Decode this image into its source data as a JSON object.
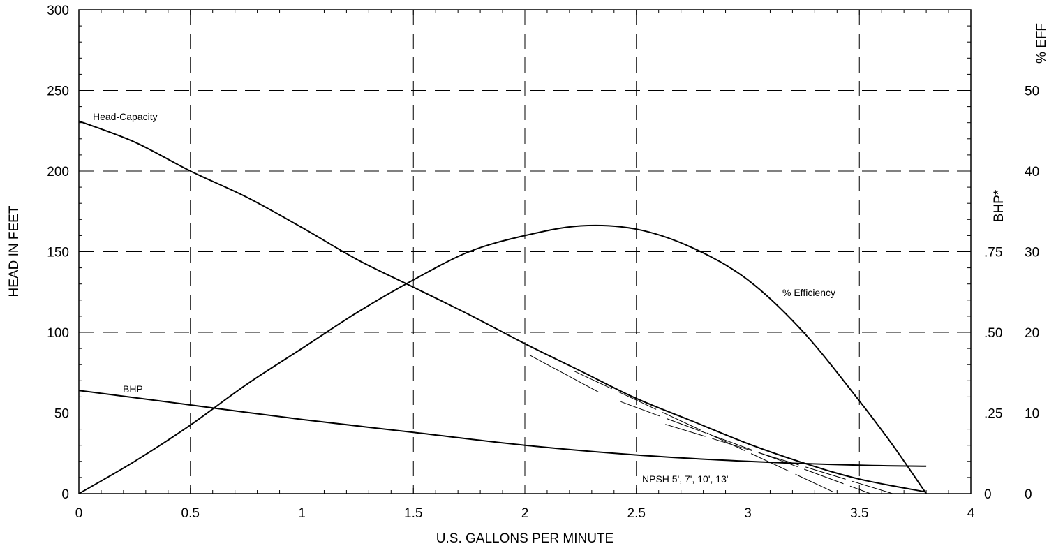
{
  "chart_data": {
    "type": "line",
    "title_left_partial": "",
    "title_right_partial": "",
    "xlabel": "U.S. GALLONS PER MINUTE",
    "ylabel": "HEAD IN FEET",
    "y2label_bhp": "BHP*",
    "y3label_eff": "% EFF",
    "xlim": [
      0,
      4
    ],
    "ylim": [
      0,
      300
    ],
    "grid": true,
    "x_ticks": [
      {
        "v": 0,
        "label": "0"
      },
      {
        "v": 0.5,
        "label": "0.5"
      },
      {
        "v": 1,
        "label": "1"
      },
      {
        "v": 1.5,
        "label": "1.5"
      },
      {
        "v": 2,
        "label": "2"
      },
      {
        "v": 2.5,
        "label": "2.5"
      },
      {
        "v": 3,
        "label": "3"
      },
      {
        "v": 3.5,
        "label": "3.5"
      },
      {
        "v": 4,
        "label": "4"
      }
    ],
    "y_ticks": [
      {
        "v": 0,
        "label": "0"
      },
      {
        "v": 50,
        "label": "50"
      },
      {
        "v": 100,
        "label": "100"
      },
      {
        "v": 150,
        "label": "150"
      },
      {
        "v": 200,
        "label": "200"
      },
      {
        "v": 250,
        "label": "250"
      },
      {
        "v": 300,
        "label": "300"
      }
    ],
    "bhp_ticks": [
      {
        "v": 0,
        "label": "0"
      },
      {
        "v": 0.25,
        "label": ".25"
      },
      {
        "v": 0.5,
        "label": ".50"
      },
      {
        "v": 0.75,
        "label": ".75"
      }
    ],
    "bhp_max": 1.5,
    "eff_ticks": [
      {
        "v": 0,
        "label": "0"
      },
      {
        "v": 10,
        "label": "10"
      },
      {
        "v": 20,
        "label": "20"
      },
      {
        "v": 30,
        "label": "30"
      },
      {
        "v": 40,
        "label": "40"
      },
      {
        "v": 50,
        "label": "50"
      }
    ],
    "eff_max": 60,
    "series": [
      {
        "name": "Head-Capacity",
        "axis": "head",
        "x": [
          0,
          0.25,
          0.5,
          0.75,
          1.0,
          1.25,
          1.5,
          1.75,
          2.0,
          2.25,
          2.5,
          2.75,
          3.0,
          3.25,
          3.5,
          3.8
        ],
        "y": [
          231,
          218,
          200,
          184,
          165,
          145,
          128,
          111,
          93,
          76,
          59,
          45,
          31,
          19,
          9,
          1
        ]
      },
      {
        "name": "% Efficiency",
        "axis": "eff",
        "x": [
          0,
          0.25,
          0.5,
          0.75,
          1.0,
          1.25,
          1.5,
          1.75,
          2.0,
          2.25,
          2.5,
          2.75,
          3.0,
          3.25,
          3.5,
          3.65,
          3.8
        ],
        "y": [
          0,
          4,
          8.5,
          13.5,
          18,
          22.5,
          26.5,
          30,
          32,
          33.2,
          32.8,
          30.5,
          26.5,
          20,
          11.5,
          6,
          0
        ]
      },
      {
        "name": "BHP",
        "axis": "bhp",
        "x": [
          0,
          0.5,
          1.0,
          1.5,
          2.0,
          2.5,
          3.0,
          3.5,
          3.8
        ],
        "y": [
          0.32,
          0.275,
          0.23,
          0.19,
          0.15,
          0.12,
          0.1,
          0.088,
          0.085
        ]
      }
    ],
    "npsh_lines": [
      {
        "name": "5'",
        "x": [
          2.02,
          2.33
        ],
        "y": [
          86,
          63
        ]
      },
      {
        "name": "7'",
        "x": [
          2.22,
          3.4
        ],
        "y": [
          76,
          0
        ]
      },
      {
        "name": "10'",
        "x": [
          2.43,
          3.55
        ],
        "y": [
          57,
          0
        ]
      },
      {
        "name": "13'",
        "x": [
          2.63,
          3.65
        ],
        "y": [
          43,
          0
        ]
      }
    ],
    "annotations": {
      "head_capacity": "Head-Capacity",
      "efficiency": "% Efficiency",
      "bhp": "BHP",
      "npsh": "NPSH 5', 7', 10', 13'"
    }
  }
}
